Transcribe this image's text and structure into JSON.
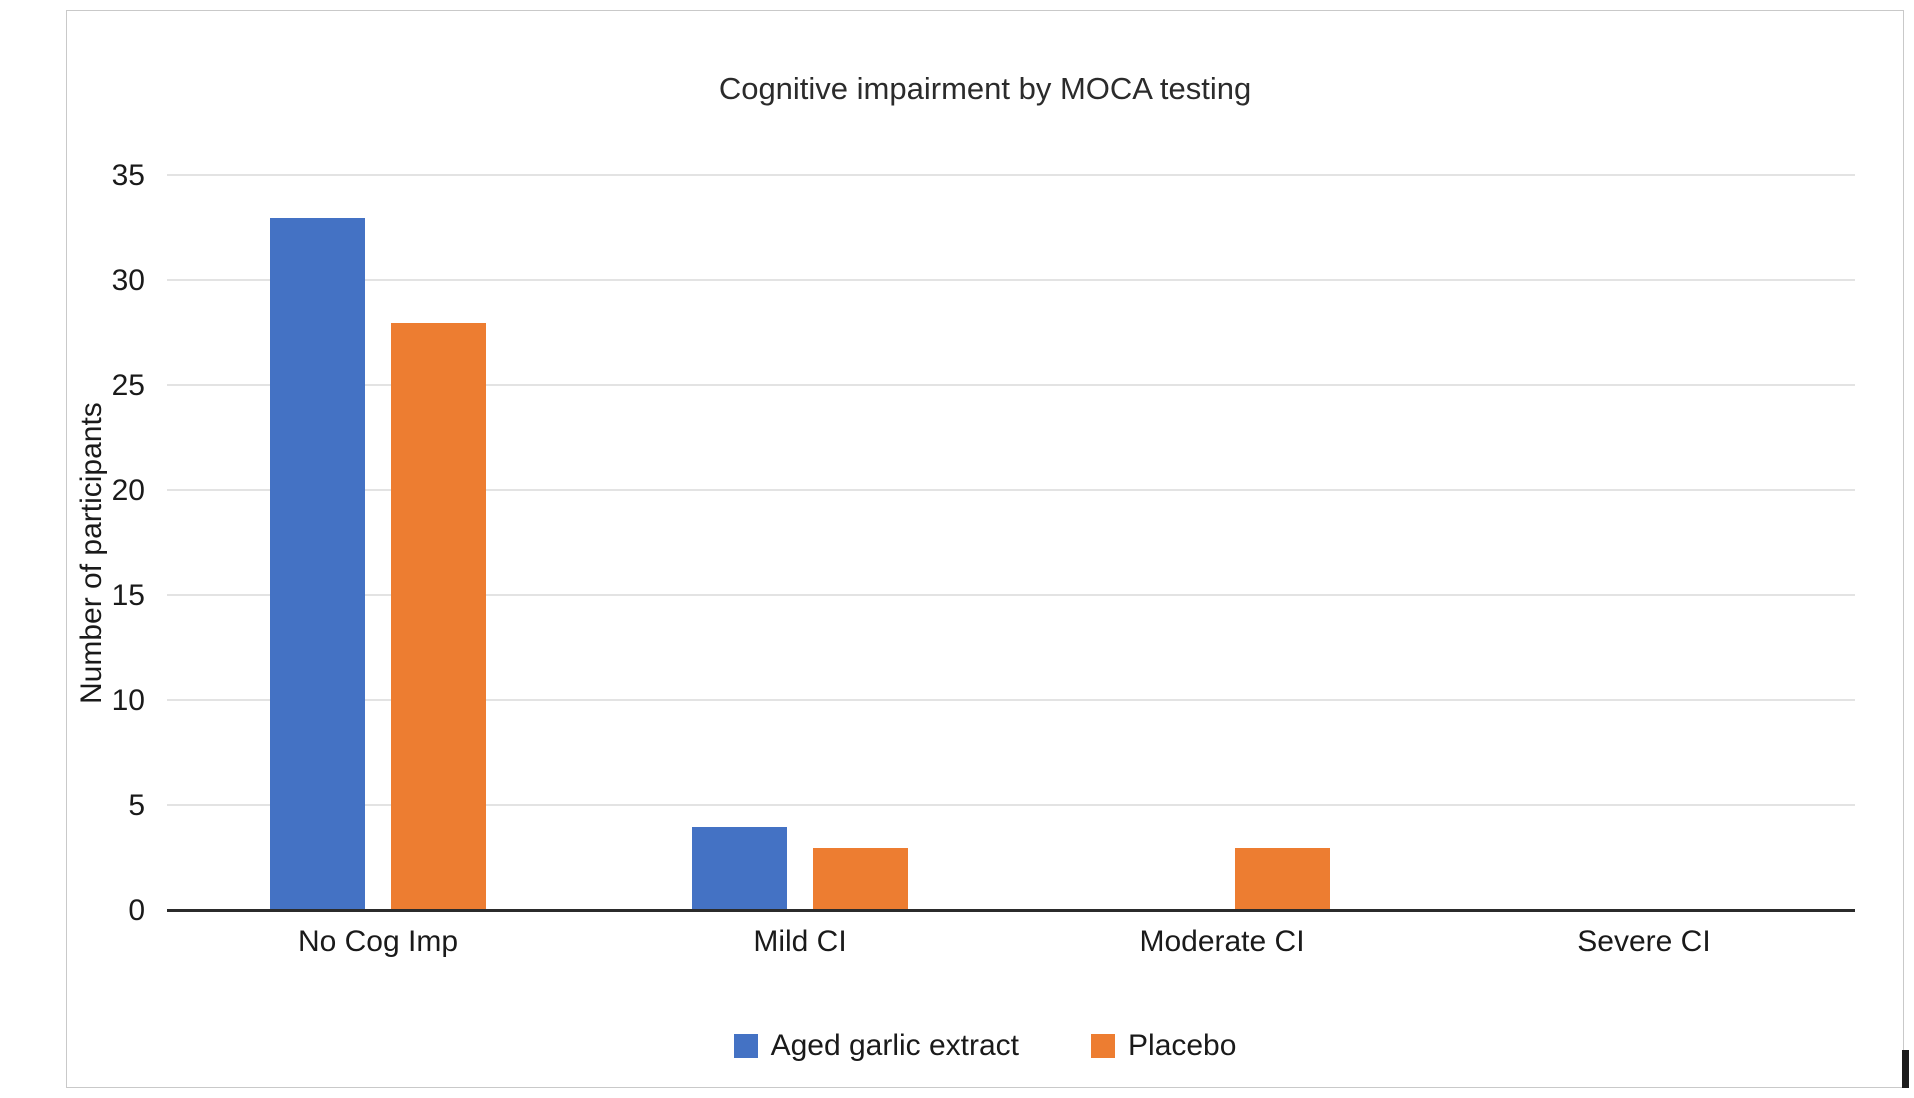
{
  "chart_data": {
    "type": "bar",
    "title": "Cognitive impairment by MOCA testing",
    "xlabel": "",
    "ylabel": "Number of participants",
    "categories": [
      "No Cog Imp",
      "Mild CI",
      "Moderate CI",
      "Severe CI"
    ],
    "series": [
      {
        "name": "Aged garlic extract",
        "color": "#4472C4",
        "values": [
          33,
          4,
          0,
          0
        ]
      },
      {
        "name": "Placebo",
        "color": "#ED7D31",
        "values": [
          28,
          3,
          3,
          0
        ]
      }
    ],
    "ylim": [
      0,
      35
    ],
    "ytick_step": 5,
    "grid": true,
    "legend_position": "bottom"
  }
}
